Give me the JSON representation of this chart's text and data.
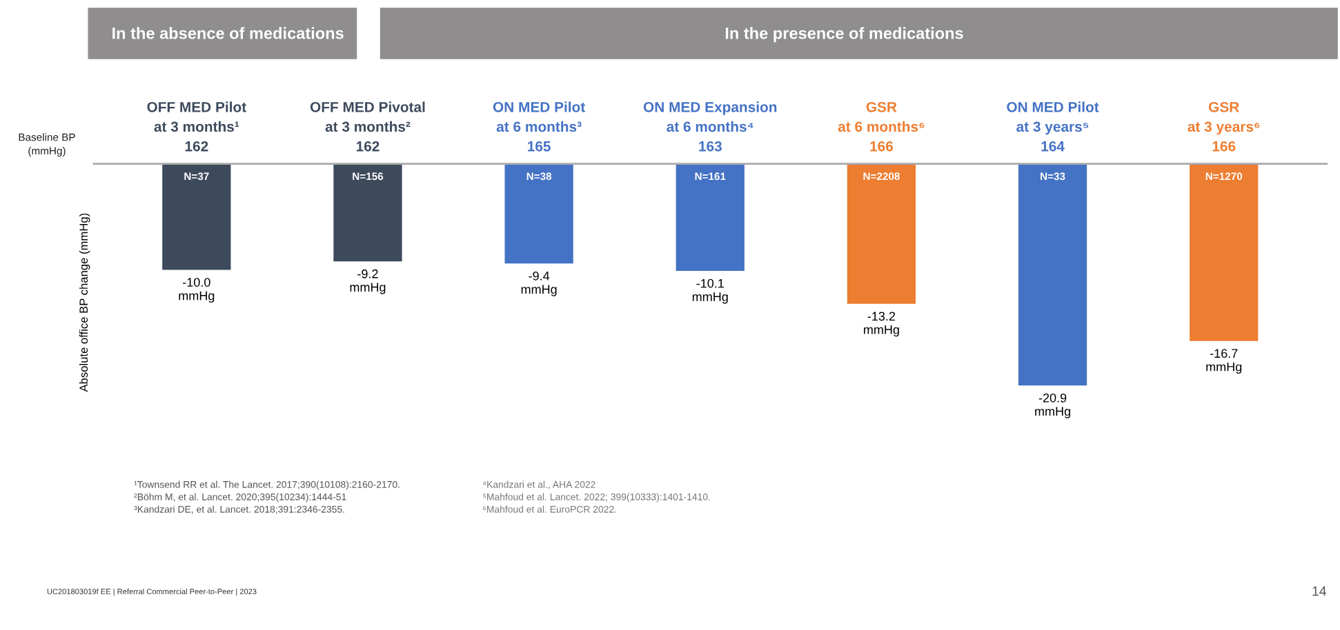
{
  "chart_data": {
    "type": "bar",
    "ylabel": "Absolute office BP change (mmHg)",
    "categories": [
      "OFF MED Pilot\nat 3 months¹\n162",
      "OFF MED Pivotal\nat 3 months²\n162",
      "ON MED Pilot\nat 6 months³\n165",
      "ON MED Expansion\nat 6 months⁴\n163",
      "GSR\nat 6 months⁶\n166",
      "ON MED Pilot\nat 3 years⁵\n164",
      "GSR\nat 3 years⁶\n166"
    ],
    "values": [
      -10.0,
      -9.2,
      -9.4,
      -10.1,
      -13.2,
      -20.9,
      -16.7
    ],
    "colors": [
      "#3d4a5c",
      "#3d4a5c",
      "#4472c4",
      "#4472c4",
      "#ed7d31",
      "#4472c4",
      "#ed7d31"
    ],
    "value_labels": [
      "-10.0\nmmHg",
      "-9.2\nmmHg",
      "-9.4\nmmHg",
      "-10.1\nmmHg",
      "-13.2\nmmHg",
      "-20.9\nmmHg",
      "-16.7\nmmHg"
    ],
    "annotations": [
      "In the absence of medications",
      "In the presence of medications",
      "Baseline BP\n(mmHg)",
      "¹Townsend RR et al. The Lancet. 2017;390(10108):2160-2170.\n²Böhm M, et al. Lancet. 2020;395(10234):1444-51\n³Kandzari DE, et al. Lancet. 2018;391:2346-2355.",
      "⁴Kandzari et al., AHA 2022\n⁵Mahfoud et al. Lancet. 2022; 399(10333):1401-1410.\n⁶Mahfoud et al. EuroPCR 2022.",
      "UC201803019f EE | Referral Commercial Peer-to-Peer | 2023",
      "14",
      "N=37",
      "N=156",
      "N=38",
      "N=161",
      "N=2208",
      "N=33",
      "N=1270"
    ]
  }
}
